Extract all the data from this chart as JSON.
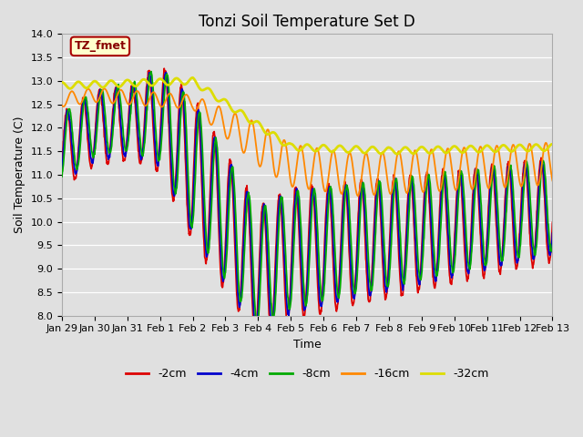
{
  "title": "Tonzi Soil Temperature Set D",
  "xlabel": "Time",
  "ylabel": "Soil Temperature (C)",
  "ylim": [
    8.0,
    14.0
  ],
  "yticks": [
    8.0,
    8.5,
    9.0,
    9.5,
    10.0,
    10.5,
    11.0,
    11.5,
    12.0,
    12.5,
    13.0,
    13.5,
    14.0
  ],
  "xtick_labels": [
    "Jan 29",
    "Jan 30",
    "Jan 31",
    "Feb 1",
    "Feb 2",
    "Feb 3",
    "Feb 4",
    "Feb 5",
    "Feb 6",
    "Feb 7",
    "Feb 8",
    "Feb 9",
    "Feb 10",
    "Feb 11",
    "Feb 12",
    "Feb 13"
  ],
  "legend_labels": [
    "-2cm",
    "-4cm",
    "-8cm",
    "-16cm",
    "-32cm"
  ],
  "line_colors": [
    "#dd0000",
    "#0000cc",
    "#00aa00",
    "#ff8800",
    "#dddd00"
  ],
  "line_widths": [
    1.3,
    1.3,
    1.3,
    1.3,
    2.0
  ],
  "annotation_text": "TZ_fmet",
  "annotation_bg": "#ffffcc",
  "annotation_border": "#aa0000",
  "bg_color": "#e0e0e0",
  "grid_color": "#ffffff",
  "title_fontsize": 12,
  "axis_fontsize": 9,
  "tick_fontsize": 8
}
